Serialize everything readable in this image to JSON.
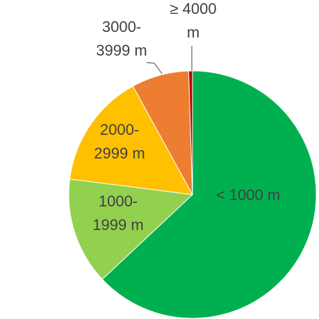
{
  "chart_data": {
    "type": "pie",
    "categories": [
      "< 1000 m",
      "1000-1999 m",
      "2000-2999 m",
      "3000-3999 m",
      "≥ 4000 m"
    ],
    "values": [
      63,
      14,
      15,
      7.5,
      0.5
    ],
    "colors": [
      "#00b050",
      "#92d050",
      "#ffc000",
      "#ed7d31",
      "#c00000"
    ],
    "start_angle": 0,
    "direction": "clockwise"
  }
}
